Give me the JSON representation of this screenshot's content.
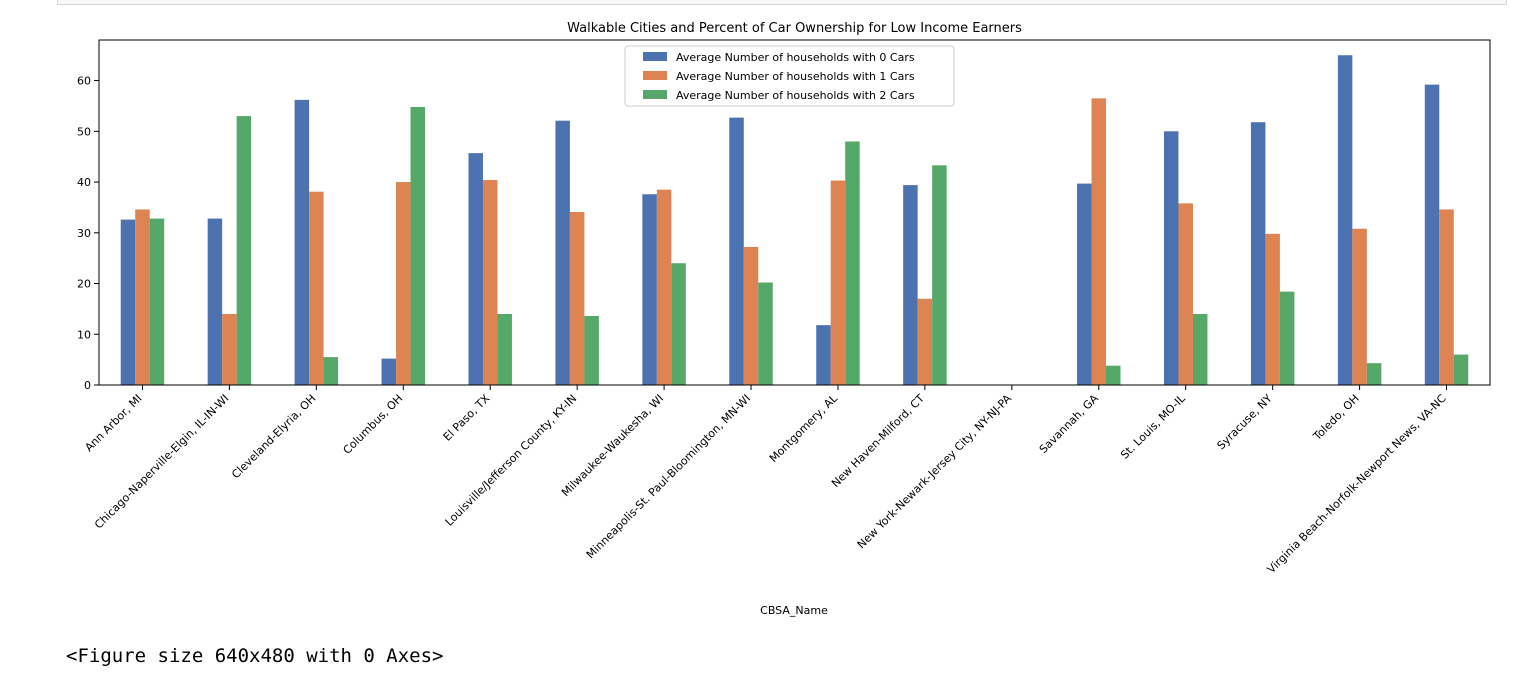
{
  "notebook": {
    "output_text": "<Figure size 640x480 with 0 Axes>"
  },
  "chart_data": {
    "type": "bar",
    "title": "Walkable Cities and Percent of Car Ownership for Low Income Earners",
    "xlabel": "CBSA_Name",
    "ylabel": "",
    "ylim": [
      0,
      68
    ],
    "yticks": [
      0,
      10,
      20,
      30,
      40,
      50,
      60
    ],
    "legend_position": "top-center",
    "grid": false,
    "categories": [
      "Ann Arbor, MI",
      "Chicago-Naperville-Elgin, IL-IN-WI",
      "Cleveland-Elyria, OH",
      "Columbus, OH",
      "El Paso, TX",
      "Louisville/Jefferson County, KY-IN",
      "Milwaukee-Waukesha, WI",
      "Minneapolis-St. Paul-Bloomington, MN-WI",
      "Montgomery, AL",
      "New Haven-Milford, CT",
      "New York-Newark-Jersey City, NY-NJ-PA",
      "Savannah, GA",
      "St. Louis, MO-IL",
      "Syracuse, NY",
      "Toledo, OH",
      "Virginia Beach-Norfolk-Newport News, VA-NC"
    ],
    "series": [
      {
        "name": "Average Number of households with 0 Cars",
        "color": "#4c72b0",
        "values": [
          32.6,
          32.8,
          56.2,
          5.2,
          45.7,
          52.1,
          37.6,
          52.7,
          11.8,
          39.4,
          null,
          39.7,
          50.0,
          51.8,
          65.0,
          59.2
        ]
      },
      {
        "name": "Average Number of households with 1 Cars",
        "color": "#dd8452",
        "values": [
          34.6,
          14.0,
          38.1,
          40.0,
          40.4,
          34.1,
          38.5,
          27.2,
          40.3,
          17.0,
          null,
          56.5,
          35.8,
          29.8,
          30.8,
          34.6
        ]
      },
      {
        "name": "Average Number of households with 2 Cars",
        "color": "#55a868",
        "values": [
          32.8,
          53.0,
          5.5,
          54.8,
          14.0,
          13.6,
          24.0,
          20.2,
          48.0,
          43.3,
          null,
          3.8,
          14.0,
          18.4,
          4.3,
          6.0
        ]
      }
    ]
  }
}
